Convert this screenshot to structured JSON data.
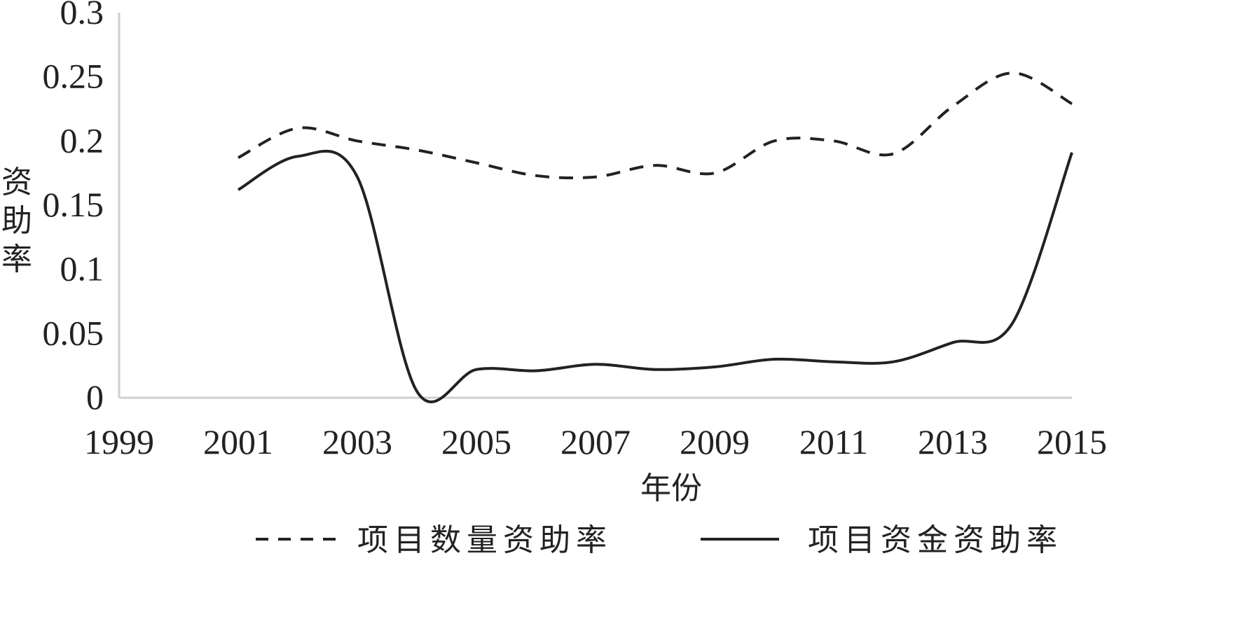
{
  "chart_data": {
    "type": "line",
    "xlabel": "年份",
    "ylabel": "资助率",
    "x_ticks": [
      "1999",
      "2001",
      "2003",
      "2005",
      "2007",
      "2009",
      "2011",
      "2013",
      "2015"
    ],
    "y_ticks": [
      "0",
      "0.05",
      "0.1",
      "0.15",
      "0.2",
      "0.25",
      "0.3"
    ],
    "xlim": [
      1999,
      2015
    ],
    "ylim": [
      0,
      0.3
    ],
    "grid": false,
    "legend_position": "bottom",
    "x": [
      2001,
      2002,
      2003,
      2004,
      2005,
      2006,
      2007,
      2008,
      2009,
      2010,
      2011,
      2012,
      2013,
      2014,
      2015
    ],
    "series": [
      {
        "name": "项目数量资助率",
        "style": "dashed",
        "color": "#222222",
        "values": [
          0.187,
          0.21,
          0.2,
          0.193,
          0.183,
          0.173,
          0.172,
          0.181,
          0.175,
          0.2,
          0.2,
          0.19,
          0.227,
          0.253,
          0.229
        ]
      },
      {
        "name": "项目资金资助率",
        "style": "solid",
        "color": "#222222",
        "values": [
          0.162,
          0.188,
          0.172,
          0.005,
          0.022,
          0.021,
          0.026,
          0.022,
          0.024,
          0.03,
          0.028,
          0.028,
          0.043,
          0.058,
          0.191
        ]
      }
    ]
  }
}
